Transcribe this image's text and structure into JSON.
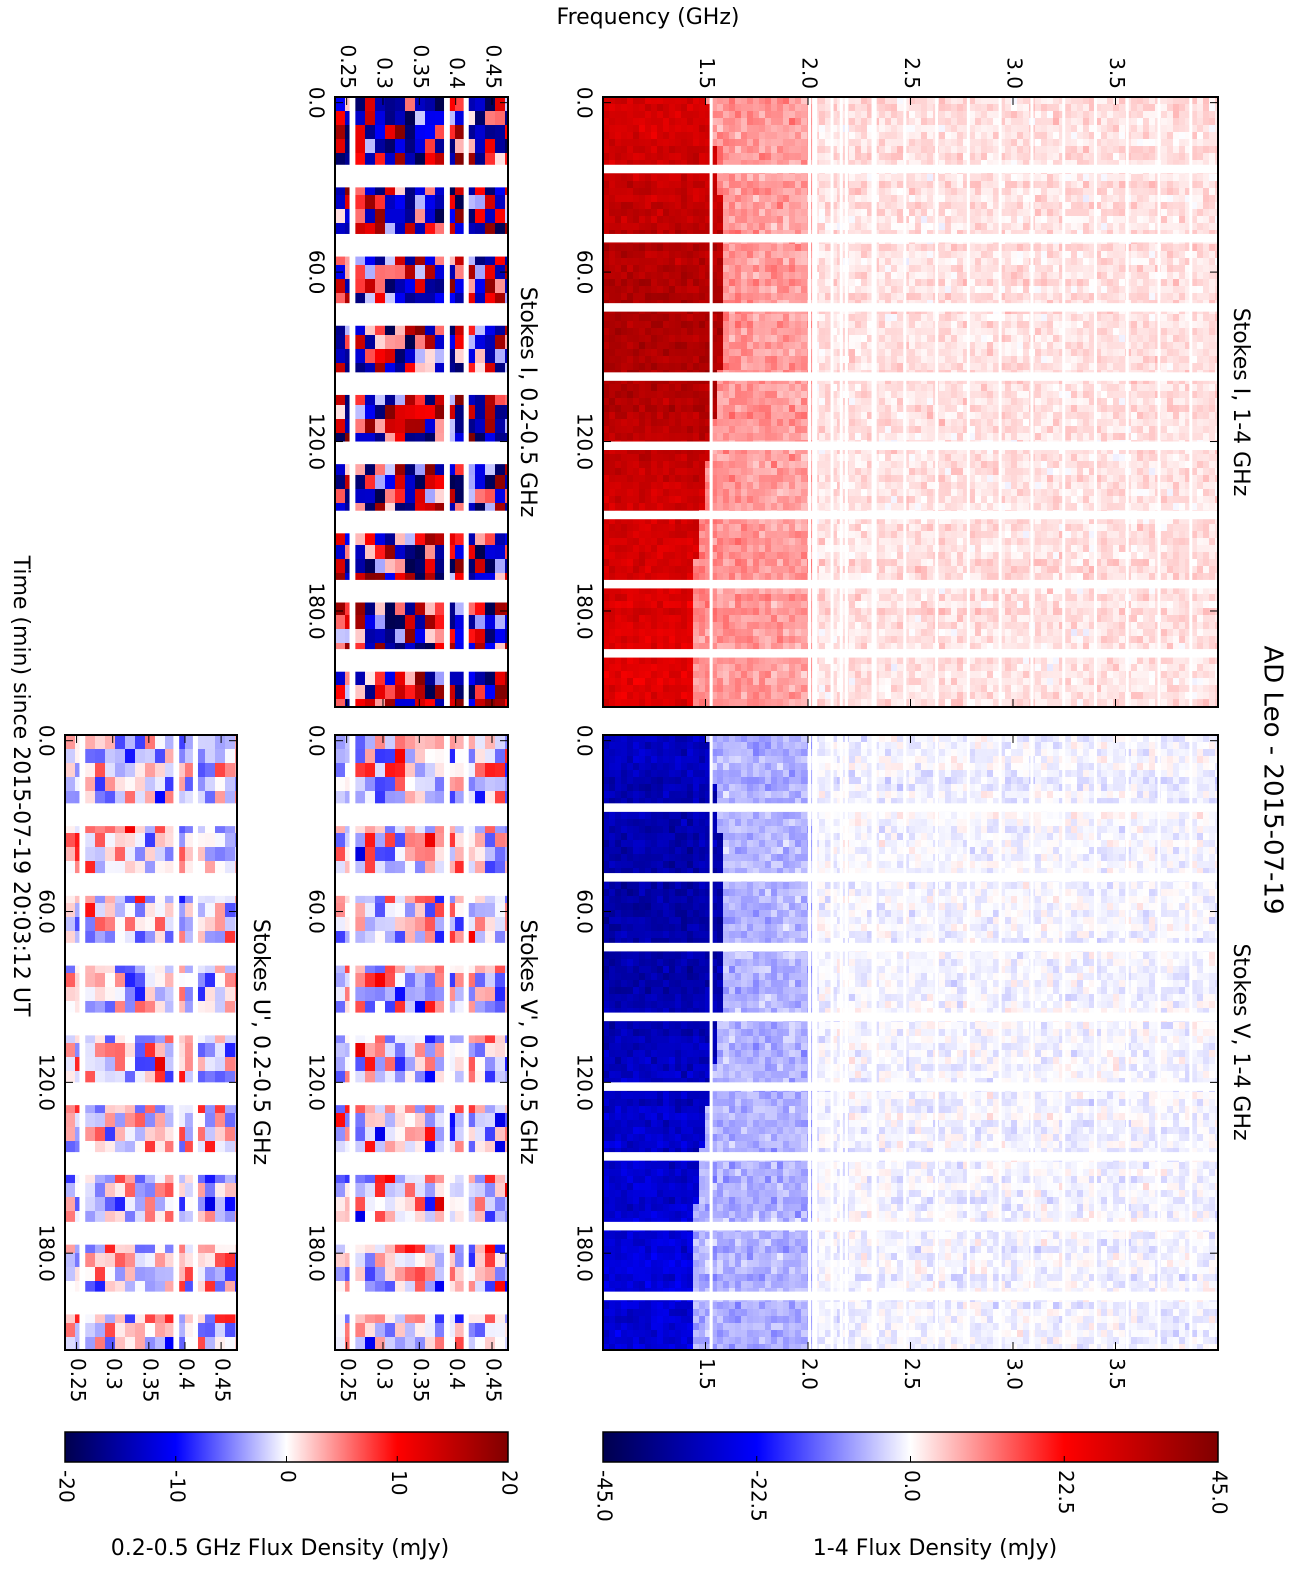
{
  "title": "AD Leo - 2015-07-19",
  "xlabel": "Frequency (GHz)",
  "ylabel": "Time (min) since 2015-07-19 20:03:12 UT",
  "chart_data": [
    {
      "type": "heatmap",
      "title": "Stokes I, 1-4 GHz",
      "xlim": [
        1.0,
        4.0
      ],
      "xticks": [
        1.5,
        {
          "value": 2,
          "label": "2.0"
        },
        2.5,
        {
          "value": 3,
          "label": "3.0"
        },
        3.5
      ],
      "ylim": [
        -2,
        214
      ],
      "yticks": [
        {
          "value": 0,
          "label": "0.0"
        },
        {
          "value": 60,
          "label": "60.0"
        },
        {
          "value": 120,
          "label": "120.0"
        },
        {
          "value": 180,
          "label": "180.0"
        }
      ]
    },
    {
      "type": "heatmap",
      "title": "Stokes V, 1-4 GHz",
      "xlim": [
        1.0,
        4.0
      ],
      "xticks": [
        1.5,
        {
          "value": 2,
          "label": "2.0"
        },
        2.5,
        {
          "value": 3,
          "label": "3.0"
        },
        3.5
      ],
      "ylim": [
        -2,
        214
      ],
      "yticks": [
        {
          "value": 0,
          "label": "0.0"
        },
        {
          "value": 60,
          "label": "60.0"
        },
        {
          "value": 120,
          "label": "120.0"
        },
        {
          "value": 180,
          "label": "180.0"
        }
      ]
    },
    {
      "type": "heatmap",
      "title": "Stokes I, 0.2-0.5 GHz",
      "xlim": [
        0.234,
        0.472
      ],
      "xticks": [
        0.25,
        0.3,
        0.35,
        0.4,
        0.45
      ],
      "ylim": [
        -2,
        214
      ],
      "yticks": [
        {
          "value": 0,
          "label": "0.0"
        },
        {
          "value": 60,
          "label": "60.0"
        },
        {
          "value": 120,
          "label": "120.0"
        },
        {
          "value": 180,
          "label": "180.0"
        }
      ]
    },
    {
      "type": "heatmap",
      "title": "Stokes V', 0.2-0.5 GHz",
      "xlim": [
        0.234,
        0.472
      ],
      "xticks": [
        0.25,
        0.3,
        0.35,
        0.4,
        0.45
      ],
      "ylim": [
        -2,
        214
      ],
      "yticks": [
        {
          "value": 0,
          "label": "0.0"
        },
        {
          "value": 60,
          "label": "60.0"
        },
        {
          "value": 120,
          "label": "120.0"
        },
        {
          "value": 180,
          "label": "180.0"
        }
      ]
    },
    {
      "type": "heatmap",
      "title": "Stokes U', 0.2-0.5 GHz",
      "xlim": [
        0.234,
        0.472
      ],
      "xticks": [
        0.25,
        0.3,
        0.35,
        0.4,
        0.45
      ],
      "ylim": [
        -2,
        214
      ],
      "yticks": [
        {
          "value": 0,
          "label": "0.0"
        },
        {
          "value": 60,
          "label": "60.0"
        },
        {
          "value": 120,
          "label": "120.0"
        },
        {
          "value": 180,
          "label": "180.0"
        }
      ]
    }
  ],
  "colorbars": [
    {
      "label": "1-4 Flux Density (mJy)",
      "xlim": [
        -45,
        45
      ],
      "xticks": [
        {
          "value": -45,
          "label": "-45.0"
        },
        -22.5,
        {
          "value": 0,
          "label": "0.0"
        },
        22.5,
        {
          "value": 45,
          "label": "45.0"
        }
      ]
    },
    {
      "label": "0.2-0.5 GHz Flux Density (mJy)",
      "xlim": [
        -20,
        20
      ],
      "xticks": [
        -20,
        -10,
        0,
        10,
        20
      ]
    }
  ]
}
